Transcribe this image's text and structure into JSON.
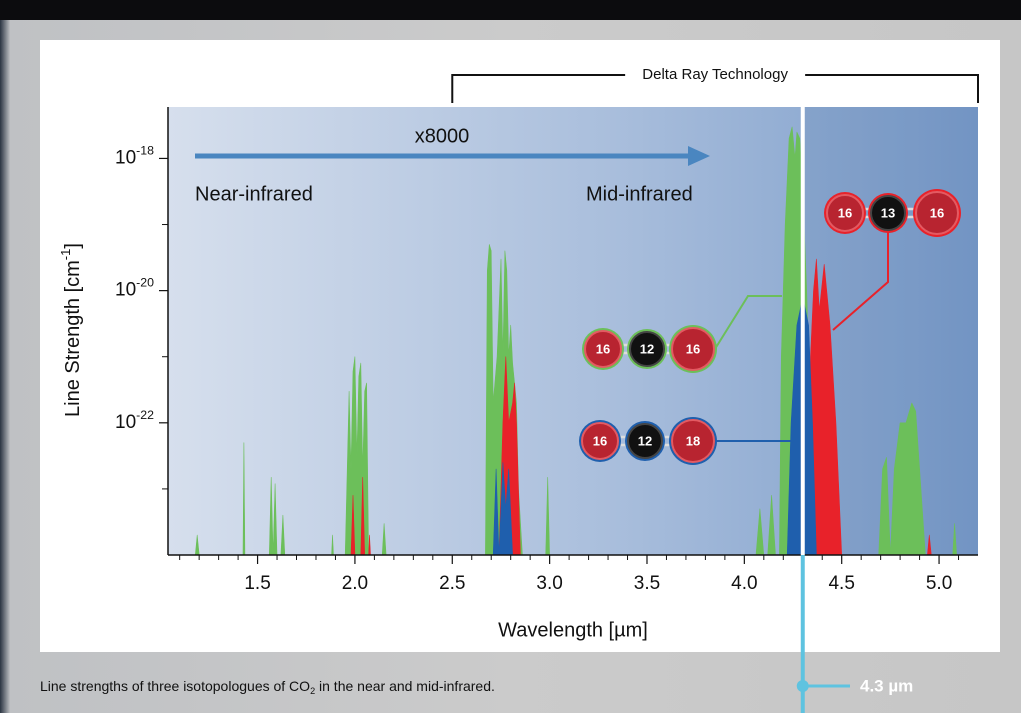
{
  "chart_data": {
    "type": "area",
    "xlabel": "Wavelength [µm]",
    "ylabel": "Line Strength [cm-1]",
    "xlim": [
      1.04,
      5.2
    ],
    "ylim": [
      1e-24,
      6e-18
    ],
    "log_scale": true,
    "xticks": [
      1.5,
      {
        "value": 2,
        "label": "2.0"
      },
      2.5,
      {
        "value": 3,
        "label": "3.0"
      },
      3.5,
      {
        "value": 4,
        "label": "4.0"
      },
      4.5,
      {
        "value": 5,
        "label": "5.0"
      }
    ],
    "xminorticks": [
      1.1,
      1.2,
      1.3,
      1.4,
      1.6,
      1.7,
      1.8,
      1.9,
      2.1,
      2.2,
      2.3,
      2.4,
      2.6,
      2.7,
      2.8,
      2.9,
      3.1,
      3.2,
      3.3,
      3.4,
      3.6,
      3.7,
      3.8,
      3.9,
      4.1,
      4.2,
      4.3,
      4.4,
      4.6,
      4.7,
      4.8,
      4.9,
      5.1
    ],
    "yticks": [
      {
        "value": 1e-18,
        "label": "10-18"
      },
      {
        "value": 1e-20,
        "label": "10-20"
      },
      {
        "value": 1e-22,
        "label": "10-22"
      }
    ],
    "yminorticks": [
      1e-19,
      1e-21,
      1e-23
    ],
    "series": [
      {
        "color": "#6cbf5a",
        "molecule": [
          "16",
          "12",
          "16"
        ],
        "x": [
          1.18,
          1.19,
          1.2,
          null,
          1.425,
          1.43,
          1.435,
          null,
          1.56,
          1.57,
          1.58,
          1.59,
          1.6,
          null,
          1.62,
          1.63,
          1.64,
          null,
          1.88,
          1.885,
          1.89,
          null,
          1.95,
          1.97,
          1.98,
          1.99,
          2.0,
          2.01,
          2.02,
          2.03,
          2.04,
          2.05,
          2.06,
          2.07,
          null,
          2.14,
          2.15,
          2.16,
          null,
          2.67,
          2.68,
          2.69,
          2.7,
          2.71,
          2.73,
          2.75,
          2.76,
          2.77,
          2.78,
          2.79,
          2.8,
          2.81,
          2.83,
          2.84,
          2.86,
          null,
          2.98,
          2.99,
          3.0,
          null,
          4.06,
          4.08,
          4.1,
          null,
          4.12,
          4.14,
          4.16,
          null,
          4.18,
          4.19,
          4.21,
          4.23,
          4.245,
          4.26,
          4.27,
          4.285,
          4.3,
          4.32,
          4.34,
          4.36,
          null,
          4.69,
          4.71,
          4.73,
          4.75,
          4.77,
          4.8,
          4.83,
          4.86,
          4.88,
          4.9,
          4.93,
          null,
          5.07,
          5.08,
          5.09
        ],
        "values": [
          1e-24,
          2e-24,
          1e-24,
          null,
          1e-24,
          5e-23,
          1e-24,
          null,
          1e-24,
          1.5e-23,
          1e-24,
          1.2e-23,
          1e-24,
          null,
          1e-24,
          4e-24,
          1e-24,
          null,
          1e-24,
          2e-24,
          1e-24,
          null,
          1e-24,
          3e-22,
          2e-23,
          6e-22,
          1e-21,
          3e-23,
          5e-22,
          8e-22,
          2e-23,
          3e-22,
          4e-22,
          1e-24,
          null,
          1e-24,
          3e-24,
          1e-24,
          null,
          1e-24,
          2e-20,
          5e-20,
          4e-20,
          2e-22,
          1e-21,
          3e-20,
          1e-21,
          4e-20,
          2e-20,
          1e-21,
          3e-21,
          8e-22,
          2e-22,
          1e-23,
          1e-24,
          null,
          1e-24,
          1.5e-23,
          1e-24,
          null,
          1e-24,
          5e-24,
          1e-24,
          null,
          1e-24,
          8e-24,
          1e-24,
          null,
          1e-24,
          1e-21,
          1e-19,
          2e-18,
          3e-18,
          1e-18,
          2.5e-18,
          2e-18,
          3e-19,
          1e-20,
          1e-22,
          1e-24,
          null,
          1e-24,
          2e-23,
          3e-23,
          1e-24,
          2e-23,
          1e-22,
          1e-22,
          2e-22,
          1.5e-22,
          2e-23,
          1e-24,
          null,
          1e-24,
          3e-24,
          1e-24
        ]
      },
      {
        "color": "#e8222a",
        "molecule": [
          "16",
          "13",
          "16"
        ],
        "x": [
          1.98,
          1.99,
          2.0,
          null,
          2.03,
          2.04,
          2.05,
          null,
          2.07,
          2.075,
          2.08,
          null,
          2.74,
          2.76,
          2.775,
          2.79,
          2.81,
          2.82,
          2.83,
          2.85,
          null,
          4.33,
          4.34,
          4.355,
          4.37,
          4.385,
          4.41,
          4.44,
          4.47,
          4.5,
          null,
          4.94,
          4.95,
          4.96
        ],
        "values": [
          1e-24,
          8e-24,
          1e-24,
          null,
          1e-24,
          1.5e-23,
          1e-24,
          null,
          1e-24,
          2e-24,
          1e-24,
          null,
          1e-24,
          1e-22,
          1e-21,
          1e-22,
          2e-22,
          4e-22,
          1e-22,
          1e-24,
          null,
          1e-24,
          1e-21,
          1e-20,
          3e-20,
          5e-21,
          2.5e-20,
          3e-21,
          1e-22,
          1e-24,
          null,
          1e-24,
          2e-24,
          1e-24
        ]
      },
      {
        "color": "#1f5fad",
        "molecule": [
          "16",
          "12",
          "18"
        ],
        "x": [
          2.71,
          2.725,
          2.74,
          2.76,
          2.775,
          2.79,
          2.81,
          null,
          4.22,
          4.24,
          4.27,
          4.3,
          4.33,
          4.35,
          4.37
        ],
        "values": [
          1e-24,
          2e-23,
          1e-24,
          2.5e-23,
          5e-24,
          2e-23,
          1e-24,
          null,
          1e-24,
          1e-22,
          3e-21,
          8e-21,
          3e-21,
          1e-22,
          1e-24
        ]
      }
    ],
    "annotations": {
      "range_label": "Delta Ray Technology",
      "range": [
        2.5,
        5.2
      ],
      "arrow_label": "x8000",
      "near_label": "Near-infrared",
      "mid_label": "Mid-infrared",
      "marker": {
        "value": 4.3,
        "label": "4.3 µm"
      }
    }
  },
  "caption": "Line strengths of three isotopologues of CO2 in the near and mid-infrared."
}
